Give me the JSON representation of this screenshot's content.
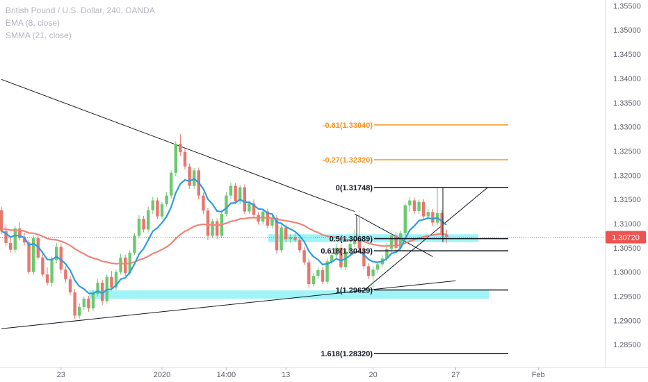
{
  "legend": {
    "title": "British Pound / U.S. Dollar, 240, OANDA",
    "ema": "EMA (8, close)",
    "smma": "SMMA (21, close)"
  },
  "price_badge": "1.30720",
  "colors": {
    "up": "#6cc96f",
    "down": "#e8766d",
    "ema": "#2e9be0",
    "smma": "#ee8478",
    "fib_black": "#131722",
    "fib_orange": "#f7931a",
    "zone": "#7ff0f4",
    "price_line": "#ef5350",
    "grid": "#f0f3fa"
  },
  "chart_data": {
    "type": "candlestick",
    "symbol": "GBPUSD",
    "ylim": [
      1.2803,
      1.3562
    ],
    "yticks": [
      "1.35500",
      "1.35000",
      "1.34500",
      "1.34000",
      "1.33500",
      "1.33000",
      "1.32500",
      "1.32000",
      "1.31500",
      "1.31000",
      "1.30500",
      "1.30000",
      "1.29500",
      "1.29000",
      "1.28500"
    ],
    "xticks": [
      "23",
      "2020",
      "14:00",
      "13",
      "20",
      "27",
      "Feb"
    ],
    "current_price": 1.3072,
    "candles": [
      [
        1.3128,
        1.3135,
        1.3078,
        1.3085
      ],
      [
        1.3085,
        1.3098,
        1.3054,
        1.306
      ],
      [
        1.306,
        1.3072,
        1.304,
        1.3046
      ],
      [
        1.3046,
        1.3095,
        1.304,
        1.309
      ],
      [
        1.309,
        1.3103,
        1.3065,
        1.307
      ],
      [
        1.307,
        1.3082,
        1.3055,
        1.3061
      ],
      [
        1.3061,
        1.3066,
        1.2995,
        1.3
      ],
      [
        1.3,
        1.3076,
        1.2994,
        1.307
      ],
      [
        1.307,
        1.3075,
        1.3025,
        1.303
      ],
      [
        1.303,
        1.3042,
        1.299,
        1.2995
      ],
      [
        1.2995,
        1.301,
        1.2972,
        1.2978
      ],
      [
        1.2978,
        1.3032,
        1.297,
        1.3025
      ],
      [
        1.3025,
        1.306,
        1.3018,
        1.3052
      ],
      [
        1.3052,
        1.3058,
        1.2998,
        1.3005
      ],
      [
        1.3005,
        1.3012,
        1.2978,
        1.2985
      ],
      [
        1.2985,
        1.2992,
        1.2952,
        1.2958
      ],
      [
        1.2958,
        1.2965,
        1.2903,
        1.291
      ],
      [
        1.291,
        1.2935,
        1.2904,
        1.2928
      ],
      [
        1.2928,
        1.2949,
        1.2922,
        1.2945
      ],
      [
        1.2945,
        1.2951,
        1.2918,
        1.2925
      ],
      [
        1.2925,
        1.2962,
        1.292,
        1.2955
      ],
      [
        1.2955,
        1.2985,
        1.295,
        1.2978
      ],
      [
        1.2978,
        1.2984,
        1.2932,
        1.294
      ],
      [
        1.294,
        1.2995,
        1.2935,
        1.299
      ],
      [
        1.299,
        1.3002,
        1.2962,
        1.2968
      ],
      [
        1.2968,
        1.3005,
        1.2962,
        1.3
      ],
      [
        1.3,
        1.3038,
        1.2995,
        1.303
      ],
      [
        1.303,
        1.3036,
        1.2992,
        1.2998
      ],
      [
        1.2998,
        1.3045,
        1.2993,
        1.304
      ],
      [
        1.304,
        1.308,
        1.3035,
        1.3075
      ],
      [
        1.3075,
        1.3118,
        1.307,
        1.311
      ],
      [
        1.311,
        1.3116,
        1.3082,
        1.3088
      ],
      [
        1.3088,
        1.3135,
        1.3082,
        1.3128
      ],
      [
        1.3128,
        1.3155,
        1.312,
        1.3148
      ],
      [
        1.3148,
        1.3154,
        1.311,
        1.3115
      ],
      [
        1.3115,
        1.3145,
        1.311,
        1.314
      ],
      [
        1.314,
        1.3165,
        1.3135,
        1.3158
      ],
      [
        1.3158,
        1.321,
        1.3152,
        1.3205
      ],
      [
        1.3205,
        1.327,
        1.3198,
        1.3265
      ],
      [
        1.3265,
        1.3285,
        1.324,
        1.3248
      ],
      [
        1.3248,
        1.3256,
        1.3212,
        1.3218
      ],
      [
        1.3218,
        1.3224,
        1.3172,
        1.3178
      ],
      [
        1.3178,
        1.3215,
        1.3172,
        1.321
      ],
      [
        1.321,
        1.3216,
        1.315,
        1.3158
      ],
      [
        1.3158,
        1.3164,
        1.312,
        1.3127
      ],
      [
        1.3127,
        1.3133,
        1.3066,
        1.3075
      ],
      [
        1.3075,
        1.311,
        1.307,
        1.3105
      ],
      [
        1.3105,
        1.3111,
        1.3068,
        1.3075
      ],
      [
        1.3075,
        1.3128,
        1.307,
        1.312
      ],
      [
        1.312,
        1.3165,
        1.3115,
        1.3158
      ],
      [
        1.3158,
        1.3185,
        1.315,
        1.3178
      ],
      [
        1.3178,
        1.3184,
        1.314,
        1.3146
      ],
      [
        1.3146,
        1.318,
        1.314,
        1.3175
      ],
      [
        1.3175,
        1.3181,
        1.312,
        1.3125
      ],
      [
        1.3125,
        1.3148,
        1.312,
        1.3142
      ],
      [
        1.3142,
        1.315,
        1.3112,
        1.3118
      ],
      [
        1.3118,
        1.3124,
        1.3098,
        1.3104
      ],
      [
        1.3104,
        1.313,
        1.3098,
        1.3125
      ],
      [
        1.3125,
        1.3131,
        1.309,
        1.3096
      ],
      [
        1.3096,
        1.3118,
        1.309,
        1.3112
      ],
      [
        1.3112,
        1.3118,
        1.3038,
        1.3045
      ],
      [
        1.3045,
        1.31,
        1.304,
        1.3092
      ],
      [
        1.3092,
        1.3098,
        1.3062,
        1.3068
      ],
      [
        1.3068,
        1.3078,
        1.306,
        1.3072
      ],
      [
        1.3072,
        1.308,
        1.3062,
        1.3066
      ],
      [
        1.3066,
        1.3074,
        1.304,
        1.3045
      ],
      [
        1.3045,
        1.3052,
        1.3015,
        1.302
      ],
      [
        1.302,
        1.3028,
        1.2968,
        1.2975
      ],
      [
        1.2975,
        1.2998,
        1.297,
        1.2992
      ],
      [
        1.2992,
        1.301,
        1.2986,
        1.3004
      ],
      [
        1.3004,
        1.301,
        1.2975,
        1.298
      ],
      [
        1.298,
        1.3028,
        1.2975,
        1.3022
      ],
      [
        1.3022,
        1.3042,
        1.3016,
        1.3035
      ],
      [
        1.3035,
        1.3058,
        1.3028,
        1.305
      ],
      [
        1.305,
        1.3056,
        1.3005,
        1.301
      ],
      [
        1.301,
        1.3048,
        1.3004,
        1.3042
      ],
      [
        1.3042,
        1.3065,
        1.3036,
        1.3058
      ],
      [
        1.3058,
        1.3088,
        1.3052,
        1.3065
      ],
      [
        1.3065,
        1.3118,
        1.304,
        1.3048
      ],
      [
        1.3048,
        1.3055,
        1.3005,
        1.3012
      ],
      [
        1.3012,
        1.3018,
        1.2985,
        1.2992
      ],
      [
        1.2992,
        1.3012,
        1.2962,
        1.3005
      ],
      [
        1.3005,
        1.3022,
        1.2998,
        1.3016
      ],
      [
        1.3016,
        1.3035,
        1.301,
        1.3028
      ],
      [
        1.3028,
        1.306,
        1.3022,
        1.3048
      ],
      [
        1.3048,
        1.3082,
        1.304,
        1.3075
      ],
      [
        1.3075,
        1.3082,
        1.3045,
        1.305
      ],
      [
        1.305,
        1.3085,
        1.3045,
        1.308
      ],
      [
        1.308,
        1.3142,
        1.3075,
        1.3138
      ],
      [
        1.3138,
        1.3155,
        1.3125,
        1.3148
      ],
      [
        1.3148,
        1.3154,
        1.312,
        1.3126
      ],
      [
        1.3126,
        1.315,
        1.312,
        1.3145
      ],
      [
        1.3145,
        1.3151,
        1.311,
        1.3115
      ],
      [
        1.3115,
        1.313,
        1.3108,
        1.3124
      ],
      [
        1.3124,
        1.313,
        1.3095,
        1.3102
      ],
      [
        1.3102,
        1.3175,
        1.3096,
        1.3122
      ],
      [
        1.3122,
        1.3128,
        1.3072,
        1.3078
      ],
      [
        1.3078,
        1.3088,
        1.306,
        1.3072
      ]
    ],
    "fib_levels": [
      {
        "label": "-0.61(1.33040)",
        "value": 1.3304,
        "color": "orange"
      },
      {
        "label": "-0.27(1.32320)",
        "value": 1.3232,
        "color": "orange"
      },
      {
        "label": "0(1.31748)",
        "value": 1.31748,
        "color": "black"
      },
      {
        "label": "0.5(1.30689)",
        "value": 1.30689,
        "color": "black"
      },
      {
        "label": "0.618(1.30439)",
        "value": 1.30439,
        "color": "black"
      },
      {
        "label": "1(1.29629)",
        "value": 1.29629,
        "color": "black"
      },
      {
        "label": "1.618(1.28320)",
        "value": 1.2832,
        "color": "black"
      }
    ],
    "zones": [
      {
        "from": 1.3062,
        "to": 1.3078
      },
      {
        "from": 1.2945,
        "to": 1.2962
      }
    ],
    "trendlines": [
      {
        "from": [
          0,
          1.3398
        ],
        "to": [
          77,
          1.3125
        ]
      },
      {
        "from": [
          0,
          1.2883
        ],
        "to": [
          99,
          1.2982
        ]
      },
      {
        "from": [
          79,
          1.2962
        ],
        "to": [
          106,
          1.3175
        ]
      },
      {
        "from": [
          77,
          1.312
        ],
        "to": [
          94,
          1.3032
        ]
      }
    ],
    "grid": false
  }
}
